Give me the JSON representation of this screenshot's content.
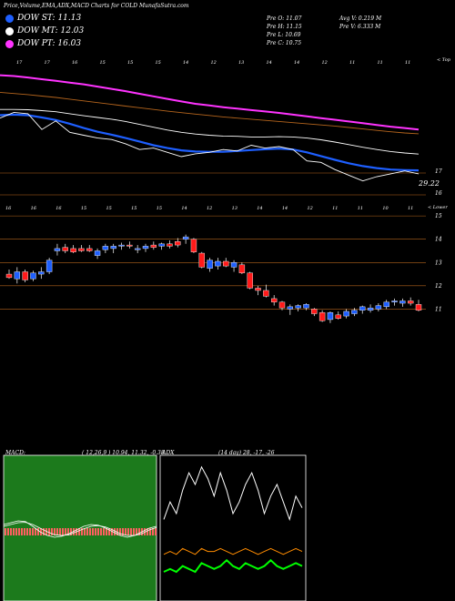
{
  "header": {
    "title": "Price,Volume,EMA,ADX,MACD Charts for COLD MunafaSutra.com",
    "stats": [
      {
        "label": "Pre O: 11.07"
      },
      {
        "label": "Pre H: 11.15"
      },
      {
        "label": "Pre L: 10.69"
      },
      {
        "label": "Pre C: 10.75"
      },
      {
        "label": "Avg V: 0.219 M"
      },
      {
        "label": "Pre V: 6.333 M"
      }
    ]
  },
  "legend": [
    {
      "label": "DOW ST: 11.13",
      "color": "#1e5fff"
    },
    {
      "label": "DOW MT: 12.03",
      "color": "#ffffff"
    },
    {
      "label": "DOW PT: 16.03",
      "color": "#ff33ff"
    }
  ],
  "colors": {
    "up": "#1e5fff",
    "down": "#ff1a1a",
    "grid": "#b5651d",
    "macd_hist": "#ff6060",
    "macd_bg": "#1c7a1c",
    "adx_plus": "#00ff00",
    "adx_minus": "#ff8c00"
  },
  "chart_data": [
    {
      "type": "line",
      "name": "ema-panel",
      "top_tick_labels": [
        "17",
        "17",
        "16",
        "15",
        "15",
        "15",
        "14",
        "12",
        "13",
        "14",
        "14",
        "12",
        "11",
        "11",
        "11"
      ],
      "bottom_tick_labels": [
        "16",
        "16",
        "16",
        "15",
        "15",
        "15",
        "15",
        "14",
        "12",
        "13",
        "14",
        "14",
        "12",
        "11",
        "11",
        "10",
        "11"
      ],
      "right_labels": [
        "17",
        "16"
      ],
      "right_label_top": "< Top",
      "annotation": "29.22",
      "series": [
        {
          "color": "#ff33ff",
          "values": [
            16.9,
            16.87,
            16.82,
            16.76,
            16.7,
            16.64,
            16.58,
            16.5,
            16.42,
            16.34,
            16.25,
            16.16,
            16.07,
            15.98,
            15.9,
            15.84,
            15.78,
            15.73,
            15.68,
            15.63,
            15.58,
            15.52,
            15.46,
            15.4,
            15.34,
            15.28,
            15.22,
            15.16,
            15.1,
            15.05,
            15.0
          ]
        },
        {
          "color": "#b5651d",
          "values": [
            16.3,
            16.26,
            16.22,
            16.17,
            16.12,
            16.06,
            16.0,
            15.94,
            15.88,
            15.82,
            15.76,
            15.7,
            15.64,
            15.59,
            15.54,
            15.49,
            15.44,
            15.4,
            15.36,
            15.32,
            15.28,
            15.24,
            15.2,
            15.16,
            15.12,
            15.07,
            15.02,
            14.97,
            14.92,
            14.88,
            14.85
          ]
        },
        {
          "color": "#ffffff",
          "values": [
            15.7,
            15.7,
            15.69,
            15.66,
            15.62,
            15.55,
            15.48,
            15.42,
            15.36,
            15.28,
            15.18,
            15.08,
            14.98,
            14.9,
            14.84,
            14.8,
            14.77,
            14.76,
            14.74,
            14.74,
            14.75,
            14.74,
            14.7,
            14.64,
            14.56,
            14.47,
            14.38,
            14.3,
            14.23,
            14.18,
            14.14
          ]
        },
        {
          "color": "#1e5fff",
          "values": [
            15.5,
            15.52,
            15.5,
            15.42,
            15.33,
            15.2,
            15.05,
            14.92,
            14.82,
            14.7,
            14.58,
            14.45,
            14.35,
            14.27,
            14.23,
            14.22,
            14.22,
            14.25,
            14.28,
            14.31,
            14.33,
            14.3,
            14.2,
            14.07,
            13.94,
            13.82,
            13.72,
            13.65,
            13.6,
            13.58,
            13.57
          ]
        },
        {
          "color": "#ffffff",
          "values": [
            15.4,
            15.6,
            15.55,
            15.0,
            15.3,
            14.9,
            14.8,
            14.7,
            14.65,
            14.5,
            14.3,
            14.35,
            14.2,
            14.05,
            14.15,
            14.2,
            14.3,
            14.25,
            14.45,
            14.35,
            14.4,
            14.3,
            13.9,
            13.85,
            13.6,
            13.4,
            13.2,
            13.35,
            13.45,
            13.55,
            13.45
          ]
        }
      ]
    },
    {
      "type": "candlestick",
      "name": "price-panel",
      "right_labels": [
        "15",
        "14",
        "13",
        "12",
        "11"
      ],
      "right_label_top": "< Lower",
      "candles": [
        {
          "o": 12.5,
          "h": 12.7,
          "l": 12.3,
          "c": 12.35
        },
        {
          "o": 12.3,
          "h": 12.8,
          "l": 12.1,
          "c": 12.6
        },
        {
          "o": 12.6,
          "h": 12.7,
          "l": 12.15,
          "c": 12.25
        },
        {
          "o": 12.3,
          "h": 12.65,
          "l": 12.2,
          "c": 12.55
        },
        {
          "o": 12.5,
          "h": 12.8,
          "l": 12.3,
          "c": 12.6
        },
        {
          "o": 12.6,
          "h": 13.2,
          "l": 12.5,
          "c": 13.1
        },
        {
          "o": 13.5,
          "h": 13.8,
          "l": 13.3,
          "c": 13.6
        },
        {
          "o": 13.65,
          "h": 13.8,
          "l": 13.4,
          "c": 13.5
        },
        {
          "o": 13.6,
          "h": 13.75,
          "l": 13.4,
          "c": 13.45
        },
        {
          "o": 13.6,
          "h": 13.75,
          "l": 13.45,
          "c": 13.5
        },
        {
          "o": 13.6,
          "h": 13.75,
          "l": 13.45,
          "c": 13.5
        },
        {
          "o": 13.3,
          "h": 13.6,
          "l": 13.15,
          "c": 13.5
        },
        {
          "o": 13.55,
          "h": 13.8,
          "l": 13.4,
          "c": 13.7
        },
        {
          "o": 13.6,
          "h": 13.8,
          "l": 13.4,
          "c": 13.7
        },
        {
          "o": 13.7,
          "h": 13.85,
          "l": 13.55,
          "c": 13.75
        },
        {
          "o": 13.75,
          "h": 13.9,
          "l": 13.6,
          "c": 13.7
        },
        {
          "o": 13.55,
          "h": 13.75,
          "l": 13.4,
          "c": 13.6
        },
        {
          "o": 13.6,
          "h": 13.8,
          "l": 13.45,
          "c": 13.7
        },
        {
          "o": 13.75,
          "h": 13.9,
          "l": 13.55,
          "c": 13.65
        },
        {
          "o": 13.7,
          "h": 13.85,
          "l": 13.55,
          "c": 13.8
        },
        {
          "o": 13.8,
          "h": 13.95,
          "l": 13.6,
          "c": 13.7
        },
        {
          "o": 13.9,
          "h": 14.05,
          "l": 13.65,
          "c": 13.75
        },
        {
          "o": 14.0,
          "h": 14.2,
          "l": 13.8,
          "c": 14.1
        },
        {
          "o": 14.0,
          "h": 14.05,
          "l": 13.4,
          "c": 13.45
        },
        {
          "o": 13.4,
          "h": 13.45,
          "l": 12.75,
          "c": 12.8
        },
        {
          "o": 12.75,
          "h": 13.2,
          "l": 12.6,
          "c": 13.1
        },
        {
          "o": 12.85,
          "h": 13.2,
          "l": 12.7,
          "c": 13.05
        },
        {
          "o": 13.05,
          "h": 13.2,
          "l": 12.8,
          "c": 12.85
        },
        {
          "o": 12.8,
          "h": 13.1,
          "l": 12.6,
          "c": 13.0
        },
        {
          "o": 12.9,
          "h": 13.0,
          "l": 12.5,
          "c": 12.55
        },
        {
          "o": 12.55,
          "h": 12.6,
          "l": 11.85,
          "c": 11.9
        },
        {
          "o": 11.9,
          "h": 12.0,
          "l": 11.6,
          "c": 11.8
        },
        {
          "o": 11.8,
          "h": 12.05,
          "l": 11.5,
          "c": 11.55
        },
        {
          "o": 11.45,
          "h": 11.6,
          "l": 11.15,
          "c": 11.3
        },
        {
          "o": 11.3,
          "h": 11.35,
          "l": 10.95,
          "c": 11.05
        },
        {
          "o": 11.0,
          "h": 11.2,
          "l": 10.75,
          "c": 11.1
        },
        {
          "o": 11.05,
          "h": 11.2,
          "l": 10.9,
          "c": 11.15
        },
        {
          "o": 11.05,
          "h": 11.25,
          "l": 10.95,
          "c": 11.2
        },
        {
          "o": 11.0,
          "h": 11.05,
          "l": 10.7,
          "c": 10.8
        },
        {
          "o": 10.85,
          "h": 10.95,
          "l": 10.45,
          "c": 10.5
        },
        {
          "o": 10.55,
          "h": 10.9,
          "l": 10.4,
          "c": 10.85
        },
        {
          "o": 10.75,
          "h": 10.9,
          "l": 10.55,
          "c": 10.6
        },
        {
          "o": 10.7,
          "h": 11.0,
          "l": 10.6,
          "c": 10.9
        },
        {
          "o": 10.8,
          "h": 11.05,
          "l": 10.7,
          "c": 10.95
        },
        {
          "o": 10.95,
          "h": 11.15,
          "l": 10.8,
          "c": 11.1
        },
        {
          "o": 10.95,
          "h": 11.2,
          "l": 10.85,
          "c": 11.05
        },
        {
          "o": 11.0,
          "h": 11.25,
          "l": 10.9,
          "c": 11.15
        },
        {
          "o": 11.1,
          "h": 11.4,
          "l": 11.0,
          "c": 11.3
        },
        {
          "o": 11.3,
          "h": 11.45,
          "l": 11.15,
          "c": 11.35
        },
        {
          "o": 11.25,
          "h": 11.45,
          "l": 11.1,
          "c": 11.35
        },
        {
          "o": 11.35,
          "h": 11.5,
          "l": 11.15,
          "c": 11.25
        },
        {
          "o": 11.2,
          "h": 11.4,
          "l": 10.9,
          "c": 10.95
        }
      ]
    },
    {
      "type": "line",
      "name": "macd-panel",
      "title": "MACD:",
      "params": "( 12,26,9 ) 10.94, 11.32, -0.38",
      "series": [
        {
          "color": "#ffffff",
          "values": [
            0.1,
            0.15,
            0.2,
            0.18,
            0.05,
            -0.1,
            -0.2,
            -0.25,
            -0.22,
            -0.15,
            -0.05,
            0.05,
            0.1,
            0.08,
            0.0,
            -0.1,
            -0.2,
            -0.25,
            -0.2,
            -0.1,
            0.0,
            0.05
          ]
        },
        {
          "color": "#ffffff",
          "values": [
            0.05,
            0.1,
            0.15,
            0.16,
            0.1,
            0.0,
            -0.1,
            -0.18,
            -0.2,
            -0.18,
            -0.1,
            -0.02,
            0.05,
            0.07,
            0.03,
            -0.05,
            -0.15,
            -0.2,
            -0.2,
            -0.15,
            -0.05,
            0.02
          ]
        }
      ]
    },
    {
      "type": "line",
      "name": "adx-panel",
      "title": "ADX",
      "params": "(14 day) 28, -17, -26",
      "series": [
        {
          "color": "#ffffff",
          "values": [
            28,
            34,
            30,
            38,
            44,
            40,
            46,
            42,
            36,
            44,
            38,
            30,
            34,
            40,
            44,
            38,
            30,
            36,
            40,
            34,
            28,
            36,
            32
          ]
        },
        {
          "color": "#ff8c00",
          "values": [
            16,
            17,
            16,
            18,
            17,
            16,
            18,
            17,
            17,
            18,
            17,
            16,
            17,
            18,
            17,
            16,
            17,
            18,
            17,
            16,
            17,
            18,
            17
          ]
        },
        {
          "color": "#00ff00",
          "values": [
            10,
            11,
            10,
            12,
            11,
            10,
            13,
            12,
            11,
            12,
            14,
            12,
            11,
            13,
            12,
            11,
            12,
            14,
            12,
            11,
            12,
            13,
            12
          ]
        }
      ]
    }
  ]
}
